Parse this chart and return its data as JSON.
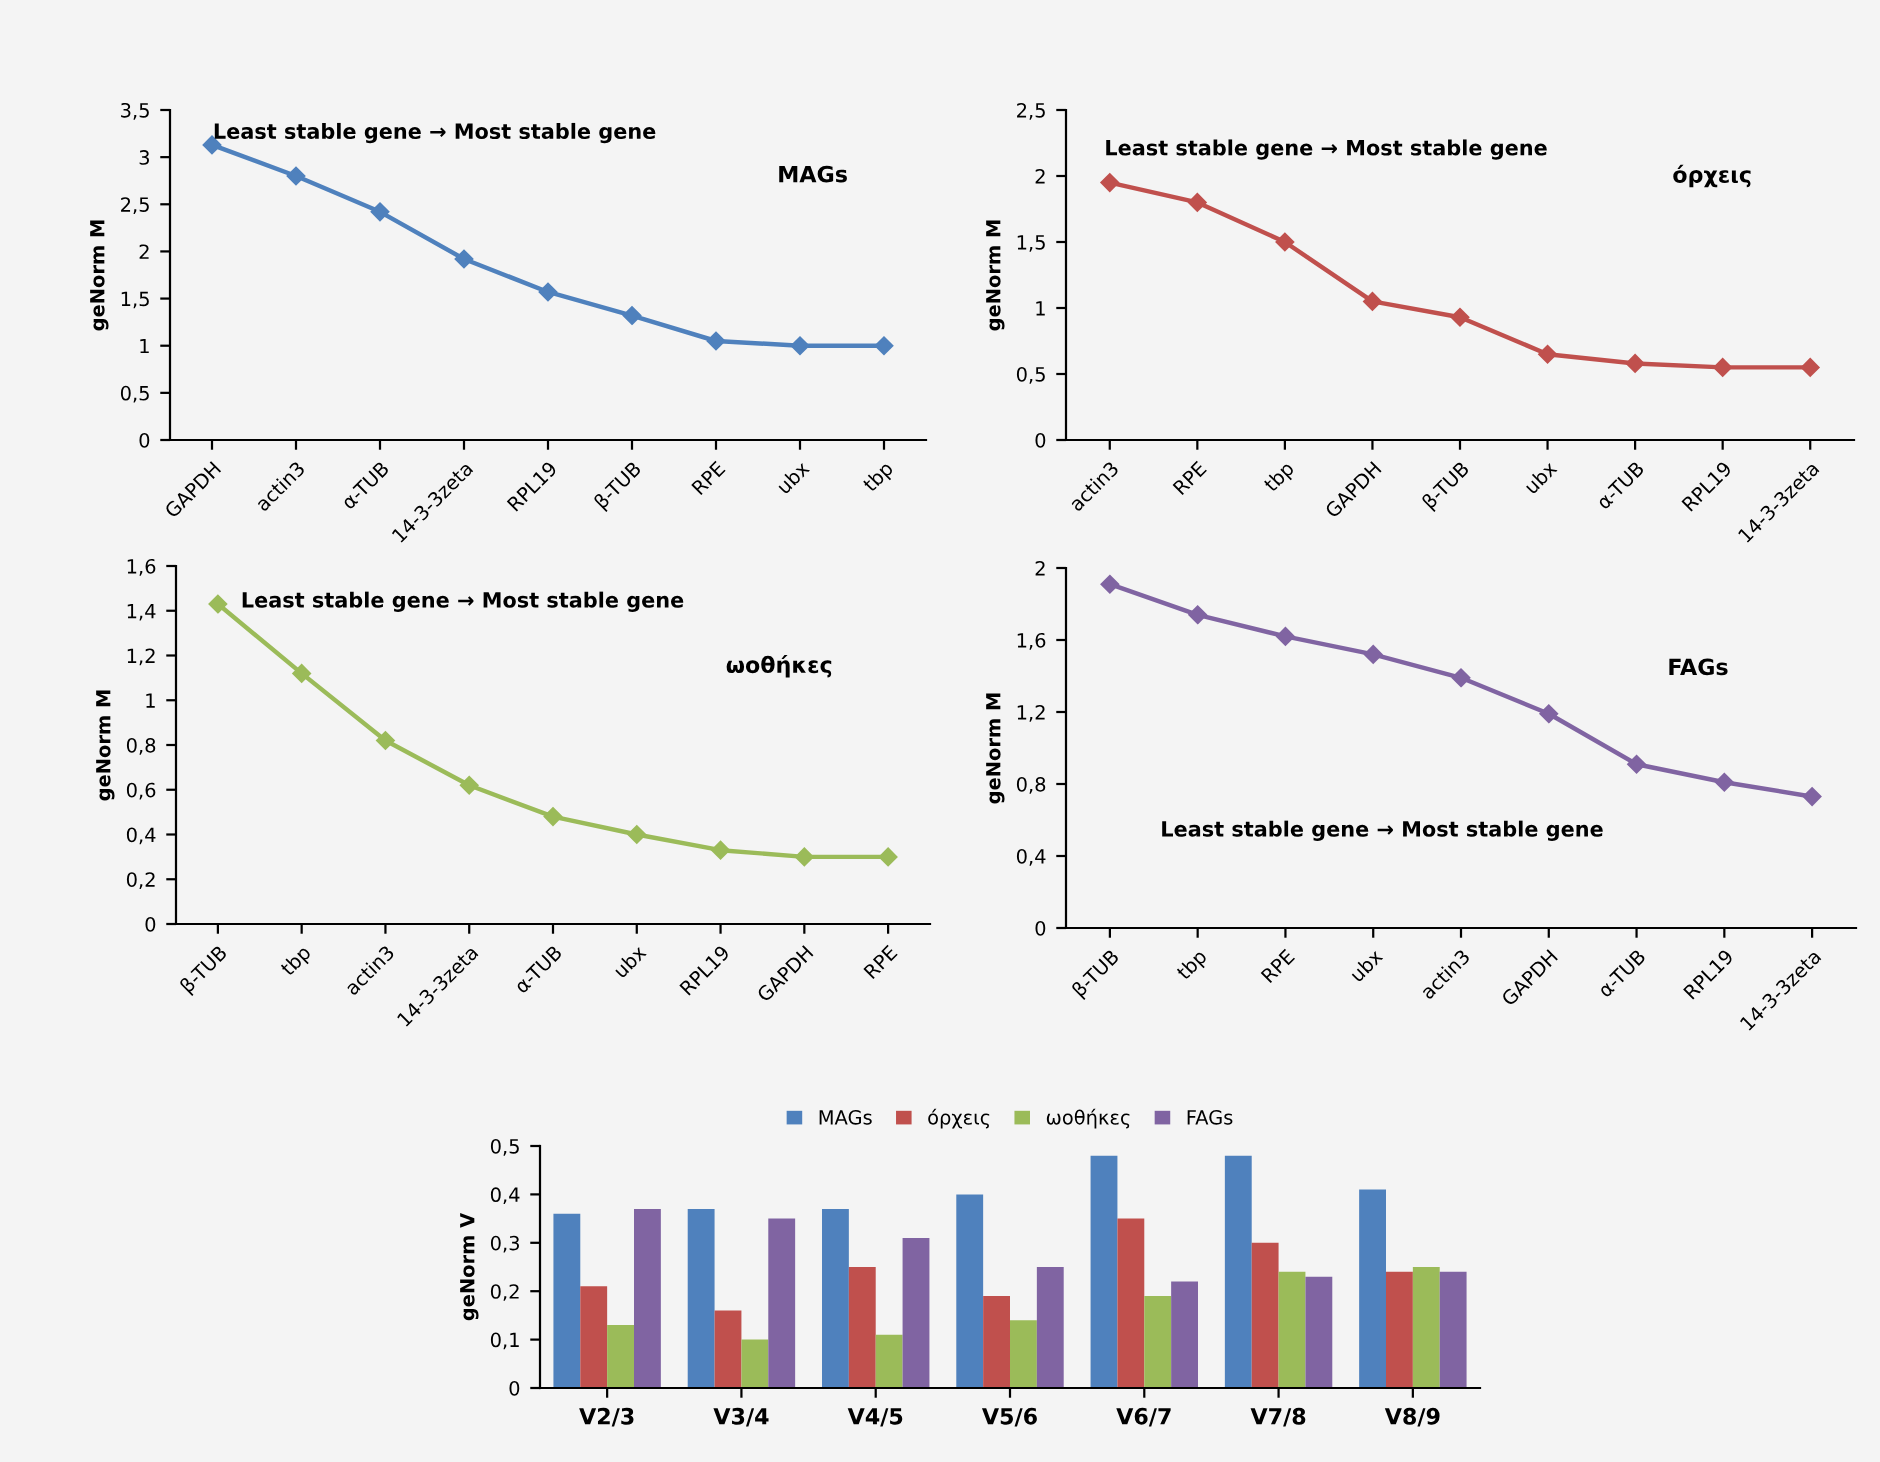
{
  "chart_data": [
    {
      "type": "line",
      "title": "MAGs",
      "ylabel": "geNorm M",
      "annotations": [
        "Least stable gene → Most stable gene"
      ],
      "categories": [
        "GAPDH",
        "actin3",
        "α-TUB",
        "14-3-3zeta",
        "RPL19",
        "β-TUB",
        "RPE",
        "ubx",
        "tbp"
      ],
      "series": [
        {
          "color": "#4f81bd",
          "values": [
            3.13,
            2.8,
            2.42,
            1.92,
            1.57,
            1.32,
            1.05,
            1.0,
            1.0
          ]
        }
      ],
      "ylim": [
        0,
        3.5
      ],
      "yticks": [
        0,
        {
          "value": 0.5,
          "label": "0,5"
        },
        1,
        {
          "value": 1.5,
          "label": "1,5"
        },
        2,
        {
          "value": 2.5,
          "label": "2,5"
        },
        3,
        {
          "value": 3.5,
          "label": "3,5"
        }
      ],
      "marker": "diamond",
      "grid": false,
      "legend": false
    },
    {
      "type": "line",
      "title": "όρχεις",
      "ylabel": "geNorm M",
      "annotations": [
        "Least stable gene → Most stable gene"
      ],
      "categories": [
        "actin3",
        "RPE",
        "tbp",
        "GAPDH",
        "β-TUB",
        "ubx",
        "α-TUB",
        "RPL19",
        "14-3-3zeta"
      ],
      "series": [
        {
          "color": "#c0504d",
          "values": [
            1.95,
            1.8,
            1.5,
            1.05,
            0.93,
            0.65,
            0.58,
            0.55,
            0.55
          ]
        }
      ],
      "ylim": [
        0,
        2.5
      ],
      "yticks": [
        0,
        {
          "value": 0.5,
          "label": "0,5"
        },
        1,
        {
          "value": 1.5,
          "label": "1,5"
        },
        2,
        {
          "value": 2.5,
          "label": "2,5"
        }
      ],
      "marker": "diamond",
      "grid": false,
      "legend": false
    },
    {
      "type": "line",
      "title": "ωοθήκες",
      "ylabel": "geNorm M",
      "annotations": [
        "Least stable gene → Most stable gene"
      ],
      "categories": [
        "β-TUB",
        "tbp",
        "actin3",
        "14-3-3zeta",
        "α-TUB",
        "ubx",
        "RPL19",
        "GAPDH",
        "RPE"
      ],
      "series": [
        {
          "color": "#9bbb59",
          "values": [
            1.43,
            1.12,
            0.82,
            0.62,
            0.48,
            0.4,
            0.33,
            0.3,
            0.3
          ]
        }
      ],
      "ylim": [
        0,
        1.6
      ],
      "yticks": [
        0,
        {
          "value": 0.2,
          "label": "0,2"
        },
        {
          "value": 0.4,
          "label": "0,4"
        },
        {
          "value": 0.6,
          "label": "0,6"
        },
        {
          "value": 0.8,
          "label": "0,8"
        },
        1,
        {
          "value": 1.2,
          "label": "1,2"
        },
        {
          "value": 1.4,
          "label": "1,4"
        },
        {
          "value": 1.6,
          "label": "1,6"
        }
      ],
      "marker": "diamond",
      "grid": false,
      "legend": false
    },
    {
      "type": "line",
      "title": "FAGs",
      "ylabel": "geNorm M",
      "annotations": [
        "Least stable gene → Most stable gene"
      ],
      "categories": [
        "β-TUB",
        "tbp",
        "RPE",
        "ubx",
        "actin3",
        "GAPDH",
        "α-TUB",
        "RPL19",
        "14-3-3zeta"
      ],
      "series": [
        {
          "color": "#8064a2",
          "values": [
            1.91,
            1.74,
            1.62,
            1.52,
            1.39,
            1.19,
            0.91,
            0.81,
            0.73
          ]
        }
      ],
      "ylim": [
        0,
        2
      ],
      "yticks": [
        0,
        {
          "value": 0.4,
          "label": "0,4"
        },
        {
          "value": 0.8,
          "label": "0,8"
        },
        {
          "value": 1.2,
          "label": "1,2"
        },
        {
          "value": 1.6,
          "label": "1,6"
        },
        2
      ],
      "marker": "diamond",
      "grid": false,
      "legend": false
    },
    {
      "type": "bar",
      "ylabel": "geNorm V",
      "categories": [
        "V2/3",
        "V3/4",
        "V4/5",
        "V5/6",
        "V6/7",
        "V7/8",
        "V8/9"
      ],
      "series": [
        {
          "name": "MAGs",
          "color": "#4f81bd",
          "values": [
            0.36,
            0.37,
            0.37,
            0.4,
            0.48,
            0.48,
            0.41
          ]
        },
        {
          "name": "όρχεις",
          "color": "#c0504d",
          "values": [
            0.21,
            0.16,
            0.25,
            0.19,
            0.35,
            0.3,
            0.24
          ]
        },
        {
          "name": "ωοθήκες",
          "color": "#9bbb59",
          "values": [
            0.13,
            0.1,
            0.11,
            0.14,
            0.19,
            0.24,
            0.25
          ]
        },
        {
          "name": "FAGs",
          "color": "#8064a2",
          "values": [
            0.37,
            0.35,
            0.31,
            0.25,
            0.22,
            0.23,
            0.24
          ]
        }
      ],
      "ylim": [
        0,
        0.5
      ],
      "yticks": [
        0,
        {
          "value": 0.1,
          "label": "0,1"
        },
        {
          "value": 0.2,
          "label": "0,2"
        },
        {
          "value": 0.3,
          "label": "0,3"
        },
        {
          "value": 0.4,
          "label": "0,4"
        },
        {
          "value": 0.5,
          "label": "0,5"
        }
      ],
      "grid": false,
      "legend": "top"
    }
  ]
}
